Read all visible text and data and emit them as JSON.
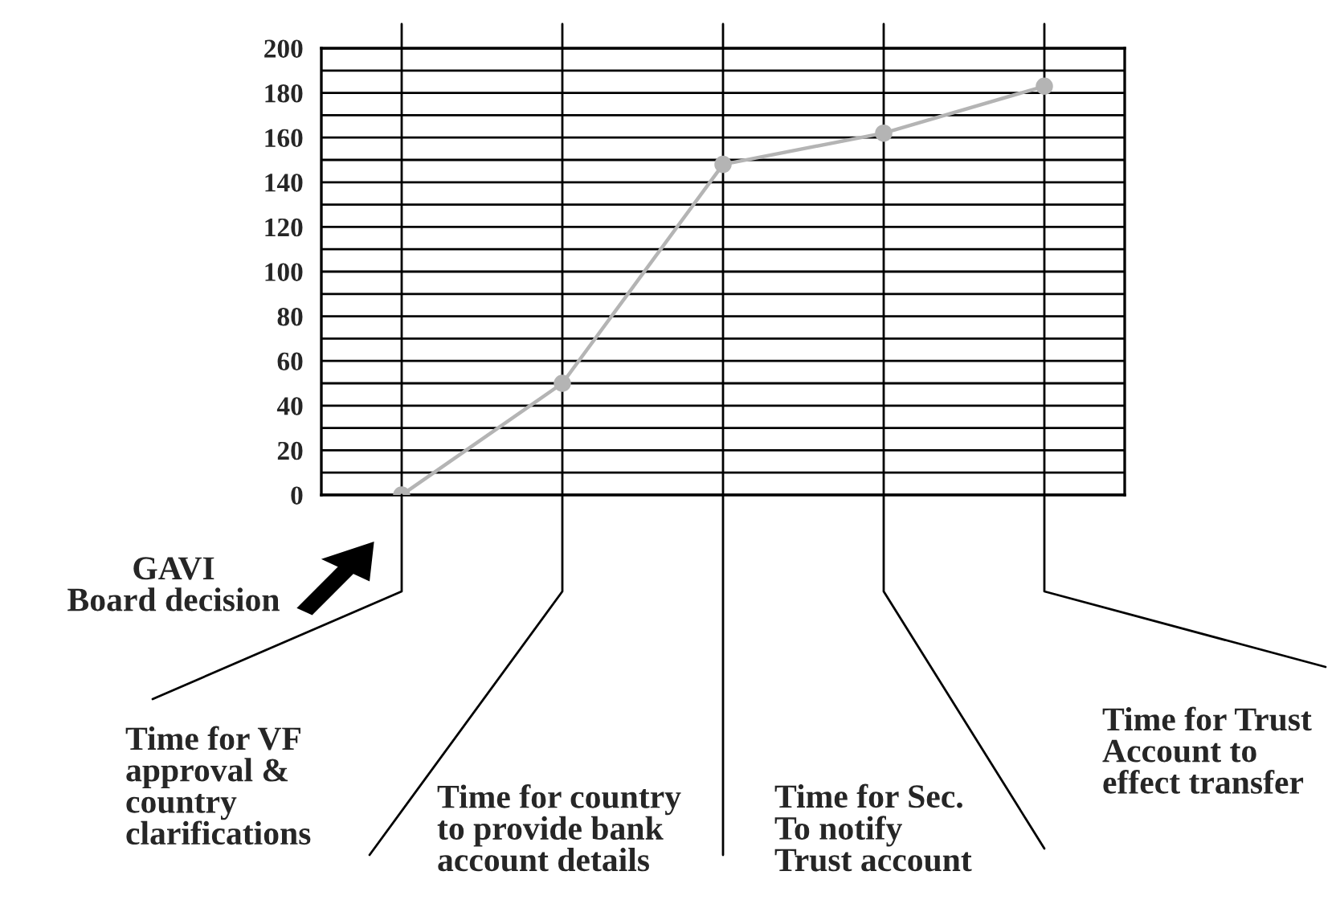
{
  "chart_data": {
    "type": "line",
    "categories": [
      null,
      null,
      null,
      null,
      null
    ],
    "series": [
      {
        "color": "#b4b4b4",
        "values": [
          0,
          50,
          148,
          162,
          183
        ]
      }
    ],
    "ylim": [
      0,
      200
    ],
    "yticks": [
      0,
      {
        "value": 10,
        "label": null
      },
      20,
      {
        "value": 30,
        "label": null
      },
      40,
      {
        "value": 50,
        "label": null
      },
      60,
      {
        "value": 70,
        "label": null
      },
      80,
      {
        "value": 90,
        "label": null
      },
      100,
      {
        "value": 110,
        "label": null
      },
      120,
      {
        "value": 130,
        "label": null
      },
      140,
      {
        "value": 150,
        "label": null
      },
      160,
      {
        "value": 170,
        "label": null
      },
      180,
      {
        "value": 190,
        "label": null
      },
      200
    ],
    "grid": true,
    "marker": "circle",
    "line_style": "solid",
    "annotations": [
      "GAVI\nBoard decision",
      "Time for VF\napproval &\ncountry\nclarifications",
      "Time for country\nto provide bank\naccount details",
      "Time for Sec.\nTo notify\nTrust account",
      "Time for Trust\nAccount to\neffect transfer"
    ]
  }
}
